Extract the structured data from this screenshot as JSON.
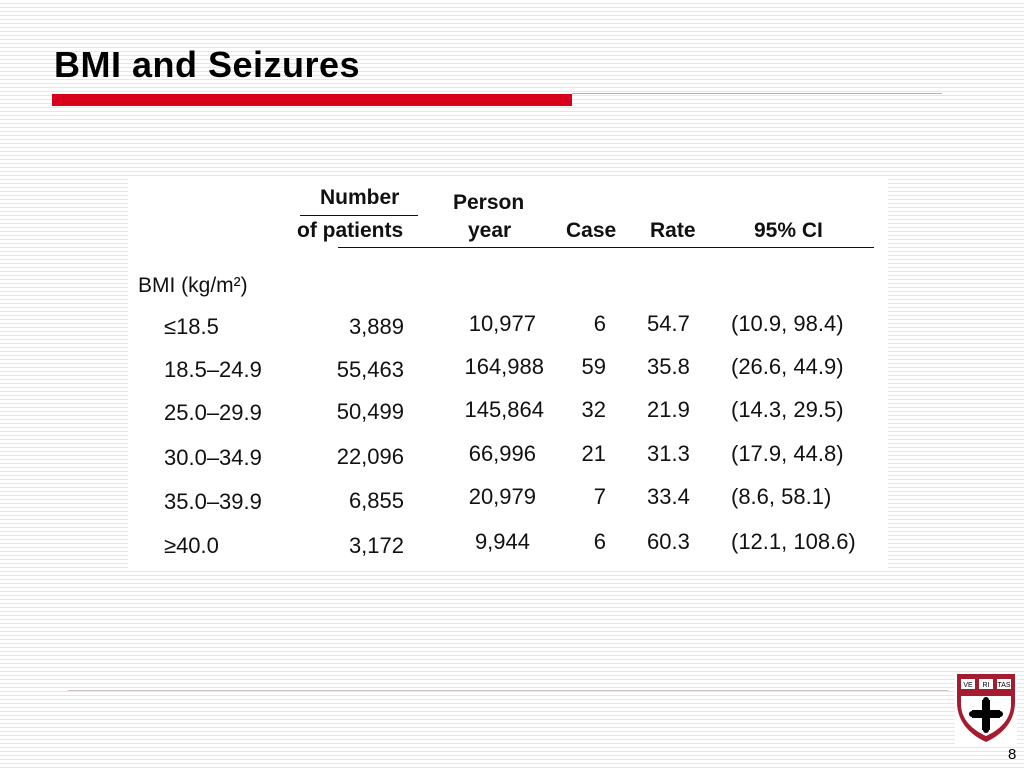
{
  "slide": {
    "title": "BMI and Seizures",
    "page_number": "8"
  },
  "table": {
    "headers": {
      "number_line1": "Number",
      "number_line2": "of patients",
      "person_line1": "Person",
      "person_line2": "year",
      "case": "Case",
      "rate": "Rate",
      "ci": "95% CI"
    },
    "group_label": "BMI (kg/m²)",
    "rows": [
      {
        "bmi": "≤18.5",
        "patients": "3,889",
        "person_year": "10,977",
        "case": "6",
        "rate": "54.7",
        "ci": "(10.9, 98.4)"
      },
      {
        "bmi": "18.5–24.9",
        "patients": "55,463",
        "person_year": "164,988",
        "case": "59",
        "rate": "35.8",
        "ci": "(26.6, 44.9)"
      },
      {
        "bmi": "25.0–29.9",
        "patients": "50,499",
        "person_year": "145,864",
        "case": "32",
        "rate": "21.9",
        "ci": "(14.3, 29.5)"
      },
      {
        "bmi": "30.0–34.9",
        "patients": "22,096",
        "person_year": "66,996",
        "case": "21",
        "rate": "31.3",
        "ci": "(17.9, 44.8)"
      },
      {
        "bmi": "35.0–39.9",
        "patients": "6,855",
        "person_year": "20,979",
        "case": "7",
        "rate": "33.4",
        "ci": "(8.6, 58.1)"
      },
      {
        "bmi": "≥40.0",
        "patients": "3,172",
        "person_year": "9,944",
        "case": "6",
        "rate": "60.3",
        "ci": "(12.1, 108.6)"
      }
    ]
  },
  "logo": {
    "shield_text": "VE RI TAS",
    "shield_color": "#a51c30"
  }
}
